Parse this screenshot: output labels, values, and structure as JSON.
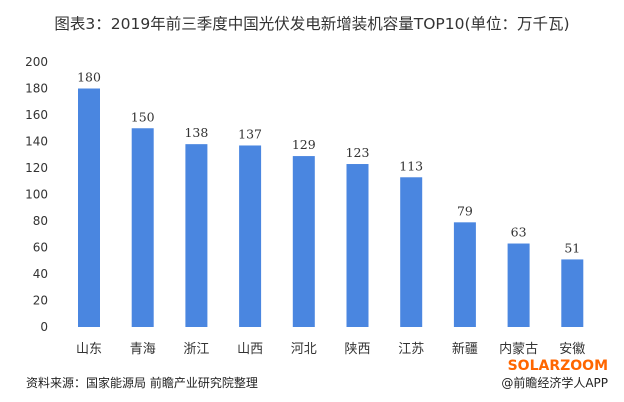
{
  "chart_data": {
    "type": "bar",
    "title": "图表3：2019年前三季度中国光伏发电新增装机容量TOP10(单位：万千瓦)",
    "categories": [
      "山东",
      "青海",
      "浙江",
      "山西",
      "河北",
      "陕西",
      "江苏",
      "新疆",
      "内蒙古",
      "安徽"
    ],
    "values": [
      180,
      150,
      138,
      137,
      129,
      123,
      113,
      79,
      63,
      51
    ],
    "ylim": [
      0,
      200
    ],
    "yticks": [
      0,
      20,
      40,
      60,
      80,
      100,
      120,
      140,
      160,
      180,
      200
    ],
    "xlabel": "",
    "ylabel": "",
    "grid": false,
    "bar_color": "#4a86e0",
    "data_labels": true
  },
  "footer": {
    "source": "资料来源：国家能源局 前瞻产业研究院整理",
    "watermark_brand": "SOLARZOOM",
    "credit": "@前瞻经济学人APP",
    "brand_color": "#ff6600"
  }
}
